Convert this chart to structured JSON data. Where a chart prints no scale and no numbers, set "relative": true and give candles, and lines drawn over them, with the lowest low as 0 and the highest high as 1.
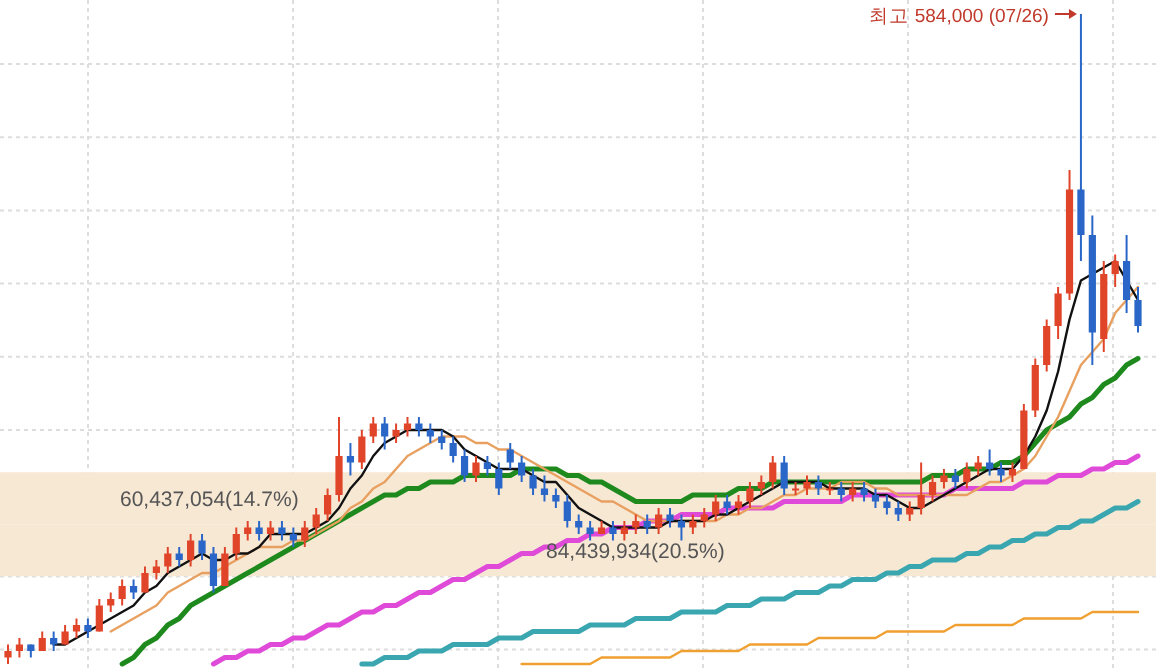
{
  "chart_data": {
    "type": "candlestick",
    "relative": true,
    "grid": true,
    "categories": [
      null,
      null,
      null,
      null,
      null,
      null,
      null,
      null,
      null,
      null,
      null,
      null,
      null,
      null,
      null,
      null,
      null,
      null,
      null,
      null,
      null,
      null,
      null,
      null,
      null,
      null,
      null,
      null,
      null,
      null,
      null,
      null,
      null,
      null,
      null,
      null,
      null,
      null,
      null,
      null,
      null,
      null,
      null,
      null,
      null,
      null,
      null,
      null,
      null,
      null,
      null,
      null,
      null,
      null,
      null,
      null,
      null,
      null,
      null,
      null,
      null,
      null,
      null,
      null,
      null,
      null,
      null,
      null,
      null,
      null,
      null,
      null,
      null,
      null,
      null,
      null,
      null,
      null,
      null,
      null,
      null,
      null,
      null,
      null,
      null,
      null,
      null,
      null,
      null,
      null,
      null,
      null,
      null,
      null,
      null,
      null,
      null,
      null,
      null,
      null
    ],
    "ohlc": [
      [
        0.01,
        0.03,
        0.0,
        0.02
      ],
      [
        0.02,
        0.04,
        0.01,
        0.03
      ],
      [
        0.03,
        0.03,
        0.01,
        0.02
      ],
      [
        0.02,
        0.05,
        0.02,
        0.04
      ],
      [
        0.04,
        0.05,
        0.02,
        0.03
      ],
      [
        0.03,
        0.06,
        0.03,
        0.05
      ],
      [
        0.05,
        0.07,
        0.04,
        0.06
      ],
      [
        0.06,
        0.07,
        0.04,
        0.05
      ],
      [
        0.05,
        0.1,
        0.05,
        0.09
      ],
      [
        0.09,
        0.11,
        0.08,
        0.1
      ],
      [
        0.1,
        0.13,
        0.09,
        0.12
      ],
      [
        0.12,
        0.13,
        0.1,
        0.11
      ],
      [
        0.11,
        0.15,
        0.11,
        0.14
      ],
      [
        0.14,
        0.16,
        0.13,
        0.15
      ],
      [
        0.15,
        0.18,
        0.14,
        0.17
      ],
      [
        0.17,
        0.18,
        0.15,
        0.16
      ],
      [
        0.16,
        0.2,
        0.15,
        0.19
      ],
      [
        0.19,
        0.2,
        0.16,
        0.17
      ],
      [
        0.17,
        0.18,
        0.11,
        0.12
      ],
      [
        0.12,
        0.18,
        0.12,
        0.17
      ],
      [
        0.17,
        0.21,
        0.16,
        0.2
      ],
      [
        0.2,
        0.22,
        0.19,
        0.21
      ],
      [
        0.21,
        0.22,
        0.19,
        0.2
      ],
      [
        0.2,
        0.22,
        0.19,
        0.21
      ],
      [
        0.21,
        0.22,
        0.19,
        0.2
      ],
      [
        0.2,
        0.21,
        0.18,
        0.19
      ],
      [
        0.19,
        0.22,
        0.18,
        0.21
      ],
      [
        0.21,
        0.24,
        0.2,
        0.23
      ],
      [
        0.23,
        0.27,
        0.22,
        0.26
      ],
      [
        0.26,
        0.38,
        0.25,
        0.32
      ],
      [
        0.32,
        0.34,
        0.29,
        0.31
      ],
      [
        0.31,
        0.36,
        0.3,
        0.35
      ],
      [
        0.35,
        0.38,
        0.34,
        0.37
      ],
      [
        0.37,
        0.38,
        0.33,
        0.35
      ],
      [
        0.35,
        0.37,
        0.34,
        0.36
      ],
      [
        0.36,
        0.38,
        0.35,
        0.37
      ],
      [
        0.37,
        0.38,
        0.35,
        0.36
      ],
      [
        0.36,
        0.37,
        0.34,
        0.35
      ],
      [
        0.35,
        0.36,
        0.33,
        0.34
      ],
      [
        0.34,
        0.35,
        0.31,
        0.32
      ],
      [
        0.32,
        0.33,
        0.28,
        0.29
      ],
      [
        0.29,
        0.32,
        0.28,
        0.31
      ],
      [
        0.31,
        0.32,
        0.29,
        0.3
      ],
      [
        0.3,
        0.31,
        0.26,
        0.27
      ],
      [
        0.33,
        0.34,
        0.3,
        0.31
      ],
      [
        0.31,
        0.32,
        0.28,
        0.29
      ],
      [
        0.29,
        0.3,
        0.26,
        0.27
      ],
      [
        0.27,
        0.29,
        0.25,
        0.26
      ],
      [
        0.26,
        0.27,
        0.24,
        0.25
      ],
      [
        0.25,
        0.26,
        0.21,
        0.22
      ],
      [
        0.22,
        0.23,
        0.2,
        0.21
      ],
      [
        0.21,
        0.22,
        0.19,
        0.2
      ],
      [
        0.2,
        0.22,
        0.2,
        0.21
      ],
      [
        0.21,
        0.22,
        0.19,
        0.2
      ],
      [
        0.2,
        0.22,
        0.19,
        0.21
      ],
      [
        0.21,
        0.23,
        0.2,
        0.22
      ],
      [
        0.22,
        0.23,
        0.2,
        0.21
      ],
      [
        0.21,
        0.24,
        0.2,
        0.23
      ],
      [
        0.23,
        0.24,
        0.21,
        0.22
      ],
      [
        0.22,
        0.23,
        0.19,
        0.21
      ],
      [
        0.21,
        0.23,
        0.2,
        0.22
      ],
      [
        0.22,
        0.24,
        0.21,
        0.23
      ],
      [
        0.23,
        0.26,
        0.22,
        0.25
      ],
      [
        0.25,
        0.26,
        0.23,
        0.24
      ],
      [
        0.24,
        0.26,
        0.23,
        0.25
      ],
      [
        0.25,
        0.28,
        0.24,
        0.27
      ],
      [
        0.27,
        0.29,
        0.26,
        0.28
      ],
      [
        0.28,
        0.32,
        0.27,
        0.31
      ],
      [
        0.31,
        0.32,
        0.26,
        0.27
      ],
      [
        0.27,
        0.28,
        0.26,
        0.27
      ],
      [
        0.27,
        0.29,
        0.26,
        0.28
      ],
      [
        0.28,
        0.29,
        0.26,
        0.27
      ],
      [
        0.27,
        0.28,
        0.26,
        0.27
      ],
      [
        0.27,
        0.28,
        0.25,
        0.26
      ],
      [
        0.26,
        0.28,
        0.25,
        0.27
      ],
      [
        0.27,
        0.28,
        0.25,
        0.26
      ],
      [
        0.26,
        0.27,
        0.24,
        0.25
      ],
      [
        0.25,
        0.26,
        0.23,
        0.24
      ],
      [
        0.24,
        0.25,
        0.22,
        0.23
      ],
      [
        0.23,
        0.25,
        0.22,
        0.24
      ],
      [
        0.24,
        0.31,
        0.23,
        0.26
      ],
      [
        0.26,
        0.29,
        0.25,
        0.28
      ],
      [
        0.28,
        0.3,
        0.27,
        0.29
      ],
      [
        0.29,
        0.3,
        0.27,
        0.28
      ],
      [
        0.28,
        0.31,
        0.27,
        0.3
      ],
      [
        0.3,
        0.32,
        0.29,
        0.31
      ],
      [
        0.31,
        0.33,
        0.29,
        0.3
      ],
      [
        0.3,
        0.31,
        0.28,
        0.29
      ],
      [
        0.29,
        0.31,
        0.28,
        0.3
      ],
      [
        0.3,
        0.4,
        0.3,
        0.39
      ],
      [
        0.39,
        0.47,
        0.38,
        0.46
      ],
      [
        0.46,
        0.53,
        0.45,
        0.52
      ],
      [
        0.52,
        0.58,
        0.5,
        0.57
      ],
      [
        0.57,
        0.76,
        0.56,
        0.73
      ],
      [
        0.73,
        1.0,
        0.62,
        0.66
      ],
      [
        0.66,
        0.69,
        0.46,
        0.51
      ],
      [
        0.5,
        0.62,
        0.48,
        0.6
      ],
      [
        0.6,
        0.63,
        0.58,
        0.62
      ],
      [
        0.62,
        0.66,
        0.54,
        0.56
      ],
      [
        0.56,
        0.58,
        0.51,
        0.52
      ]
    ],
    "series": [
      {
        "type": "line",
        "color": "#f0a030",
        "values": [
          null,
          null,
          null,
          null,
          null,
          null,
          null,
          null,
          null,
          null,
          null,
          null,
          null,
          null,
          null,
          null,
          null,
          null,
          null,
          null,
          null,
          null,
          null,
          null,
          null,
          null,
          null,
          null,
          null,
          null,
          null,
          null,
          null,
          null,
          null,
          null,
          null,
          null,
          null,
          null,
          null,
          null,
          null,
          null,
          null,
          0.0,
          0.0,
          0.0,
          0.0,
          0.0,
          0.0,
          0.0,
          0.01,
          0.01,
          0.01,
          0.01,
          0.01,
          0.01,
          0.01,
          0.02,
          0.02,
          0.02,
          0.02,
          0.02,
          0.02,
          0.03,
          0.03,
          0.03,
          0.03,
          0.03,
          0.03,
          0.04,
          0.04,
          0.04,
          0.04,
          0.04,
          0.04,
          0.05,
          0.05,
          0.05,
          0.05,
          0.05,
          0.05,
          0.06,
          0.06,
          0.06,
          0.06,
          0.06,
          0.06,
          0.07,
          0.07,
          0.07,
          0.07,
          0.07,
          0.07,
          0.08,
          0.08,
          0.08,
          0.08,
          0.08
        ]
      },
      {
        "type": "line",
        "color": "#3aa6b0",
        "values": [
          null,
          null,
          null,
          null,
          null,
          null,
          null,
          null,
          null,
          null,
          null,
          null,
          null,
          null,
          null,
          null,
          null,
          null,
          null,
          null,
          null,
          null,
          null,
          null,
          null,
          null,
          null,
          null,
          null,
          null,
          null,
          0.0,
          0.0,
          0.01,
          0.01,
          0.01,
          0.02,
          0.02,
          0.02,
          0.03,
          0.03,
          0.03,
          0.03,
          0.04,
          0.04,
          0.04,
          0.05,
          0.05,
          0.05,
          0.05,
          0.05,
          0.06,
          0.06,
          0.06,
          0.06,
          0.07,
          0.07,
          0.07,
          0.07,
          0.08,
          0.08,
          0.08,
          0.08,
          0.09,
          0.09,
          0.09,
          0.1,
          0.1,
          0.1,
          0.11,
          0.11,
          0.11,
          0.12,
          0.12,
          0.13,
          0.13,
          0.13,
          0.14,
          0.14,
          0.15,
          0.15,
          0.16,
          0.16,
          0.16,
          0.17,
          0.17,
          0.18,
          0.18,
          0.19,
          0.19,
          0.2,
          0.2,
          0.21,
          0.21,
          0.22,
          0.22,
          0.23,
          0.24,
          0.24,
          0.25
        ]
      },
      {
        "type": "line",
        "color": "#e04ad8",
        "values": [
          null,
          null,
          null,
          null,
          null,
          null,
          null,
          null,
          null,
          null,
          null,
          null,
          null,
          null,
          null,
          null,
          null,
          null,
          0.0,
          0.01,
          0.01,
          0.02,
          0.02,
          0.03,
          0.03,
          0.04,
          0.04,
          0.05,
          0.06,
          0.06,
          0.07,
          0.08,
          0.08,
          0.09,
          0.09,
          0.1,
          0.11,
          0.11,
          0.12,
          0.13,
          0.13,
          0.14,
          0.15,
          0.15,
          0.16,
          0.17,
          0.17,
          0.18,
          0.18,
          0.19,
          0.19,
          0.2,
          0.2,
          0.21,
          0.21,
          0.21,
          0.22,
          0.22,
          0.22,
          0.23,
          0.23,
          0.23,
          0.23,
          0.24,
          0.24,
          0.24,
          0.24,
          0.24,
          0.25,
          0.25,
          0.25,
          0.25,
          0.25,
          0.25,
          0.26,
          0.26,
          0.26,
          0.26,
          0.26,
          0.26,
          0.26,
          0.26,
          0.26,
          0.27,
          0.27,
          0.27,
          0.27,
          0.27,
          0.27,
          0.28,
          0.28,
          0.28,
          0.29,
          0.29,
          0.29,
          0.3,
          0.3,
          0.31,
          0.31,
          0.32
        ]
      },
      {
        "type": "line",
        "color": "#1e8a1e",
        "values": [
          null,
          null,
          null,
          null,
          null,
          null,
          null,
          null,
          null,
          null,
          0.0,
          0.01,
          0.03,
          0.04,
          0.06,
          0.07,
          0.09,
          0.1,
          0.11,
          0.12,
          0.13,
          0.14,
          0.15,
          0.16,
          0.17,
          0.18,
          0.19,
          0.2,
          0.21,
          0.22,
          0.23,
          0.24,
          0.25,
          0.26,
          0.26,
          0.27,
          0.27,
          0.28,
          0.28,
          0.28,
          0.29,
          0.29,
          0.29,
          0.29,
          0.29,
          0.3,
          0.3,
          0.3,
          0.3,
          0.29,
          0.29,
          0.28,
          0.28,
          0.27,
          0.26,
          0.25,
          0.25,
          0.25,
          0.25,
          0.25,
          0.26,
          0.26,
          0.26,
          0.26,
          0.27,
          0.27,
          0.27,
          0.28,
          0.28,
          0.28,
          0.28,
          0.28,
          0.28,
          0.28,
          0.28,
          0.28,
          0.28,
          0.28,
          0.28,
          0.28,
          0.28,
          0.29,
          0.29,
          0.29,
          0.3,
          0.3,
          0.3,
          0.31,
          0.31,
          0.32,
          0.34,
          0.36,
          0.37,
          0.38,
          0.4,
          0.41,
          0.43,
          0.44,
          0.46,
          0.47
        ]
      },
      {
        "type": "line",
        "color": "#e8a060",
        "values": [
          null,
          null,
          null,
          null,
          null,
          null,
          null,
          null,
          null,
          0.05,
          0.06,
          0.07,
          0.08,
          0.09,
          0.11,
          0.12,
          0.13,
          0.14,
          0.14,
          0.15,
          0.16,
          0.17,
          0.18,
          0.18,
          0.18,
          0.19,
          0.19,
          0.2,
          0.21,
          0.22,
          0.24,
          0.25,
          0.27,
          0.28,
          0.3,
          0.32,
          0.33,
          0.34,
          0.35,
          0.35,
          0.35,
          0.34,
          0.34,
          0.33,
          0.33,
          0.32,
          0.31,
          0.3,
          0.29,
          0.28,
          0.27,
          0.26,
          0.25,
          0.25,
          0.24,
          0.23,
          0.22,
          0.22,
          0.22,
          0.22,
          0.22,
          0.22,
          0.22,
          0.23,
          0.23,
          0.24,
          0.24,
          0.25,
          0.26,
          0.26,
          0.27,
          0.27,
          0.27,
          0.28,
          0.28,
          0.28,
          0.27,
          0.27,
          0.26,
          0.26,
          0.26,
          0.26,
          0.26,
          0.26,
          0.26,
          0.27,
          0.28,
          0.28,
          0.29,
          0.3,
          0.32,
          0.35,
          0.38,
          0.42,
          0.46,
          0.48,
          0.5,
          0.54,
          0.56,
          0.58
        ]
      },
      {
        "type": "line",
        "color": "#111111",
        "values": [
          null,
          null,
          null,
          null,
          0.03,
          0.03,
          0.04,
          0.05,
          0.06,
          0.07,
          0.08,
          0.09,
          0.11,
          0.12,
          0.14,
          0.15,
          0.16,
          0.17,
          0.16,
          0.16,
          0.17,
          0.17,
          0.18,
          0.2,
          0.2,
          0.2,
          0.2,
          0.21,
          0.22,
          0.24,
          0.27,
          0.29,
          0.32,
          0.34,
          0.35,
          0.36,
          0.36,
          0.36,
          0.36,
          0.35,
          0.33,
          0.32,
          0.31,
          0.3,
          0.3,
          0.3,
          0.29,
          0.28,
          0.28,
          0.26,
          0.24,
          0.23,
          0.22,
          0.21,
          0.21,
          0.21,
          0.21,
          0.21,
          0.22,
          0.22,
          0.22,
          0.22,
          0.23,
          0.23,
          0.24,
          0.25,
          0.26,
          0.27,
          0.28,
          0.28,
          0.28,
          0.28,
          0.27,
          0.27,
          0.27,
          0.27,
          0.26,
          0.26,
          0.25,
          0.24,
          0.24,
          0.25,
          0.26,
          0.27,
          0.28,
          0.29,
          0.3,
          0.3,
          0.3,
          0.32,
          0.35,
          0.39,
          0.45,
          0.53,
          0.59,
          0.6,
          0.61,
          0.62,
          0.59,
          0.56
        ]
      }
    ],
    "bands": [
      {
        "axis": "y",
        "from": 0.215,
        "to": 0.295,
        "label": "60,437,054(14.7%)",
        "color": "#f7e8d4"
      },
      {
        "axis": "y",
        "from": 0.135,
        "to": 0.215,
        "label": "84,439,934(20.5%)",
        "color": "#f7e8d4"
      }
    ],
    "annotations": [
      "최고 584,000 (07/26)"
    ]
  }
}
